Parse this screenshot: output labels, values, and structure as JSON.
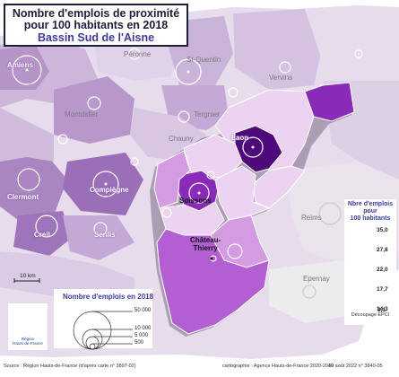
{
  "title": {
    "line1": "Nombre d'emplois de proximité",
    "line2": "pour 100 habitants en 2018",
    "line3": "Bassin Sud de l'Aisne"
  },
  "cities": {
    "amiens": "Amiens",
    "peronne": "Péronne",
    "saint_quentin": "St-Quentin",
    "vervins": "Vervins",
    "montdidier": "Montdidier",
    "tergnier": "Tergnier",
    "chauny": "Chauny",
    "laon": "Laon",
    "clermont": "Clermont",
    "compiegne": "Compiègne",
    "soissons": "Soissons",
    "creil": "Creil",
    "senlis": "Senlis",
    "reims": "Reims",
    "chateau_thierry": "Château-\nThierry",
    "epernay": "Epernay"
  },
  "scale": {
    "label": "10 km"
  },
  "bubble_legend": {
    "title": "Nombre d'emplois en 2018",
    "values": [
      "50 000",
      "10 000",
      "5 000",
      "500"
    ]
  },
  "class_legend": {
    "title_line1": "Nbre d'emplois",
    "title_line2": "pour",
    "title_line3": "100 habitants",
    "breaks": [
      "35,0",
      "27,8",
      "22,0",
      "17,7",
      "14,3",
      "9,1"
    ],
    "colors": [
      "#4e0a7a",
      "#8a2ab8",
      "#b45ed4",
      "#d49be3",
      "#ecd3f1"
    ],
    "footnote": "Découpage EPCI"
  },
  "logo": {
    "text": "Région\nHauts-de-France"
  },
  "footer": {
    "source": "Source : Région Hauts-de-France (d'après carte n° 3897-02)",
    "cartography": "cartographie : Agence Hauts-de-France 2020-2040",
    "date": "19 août 2022 n° 3840-05"
  }
}
